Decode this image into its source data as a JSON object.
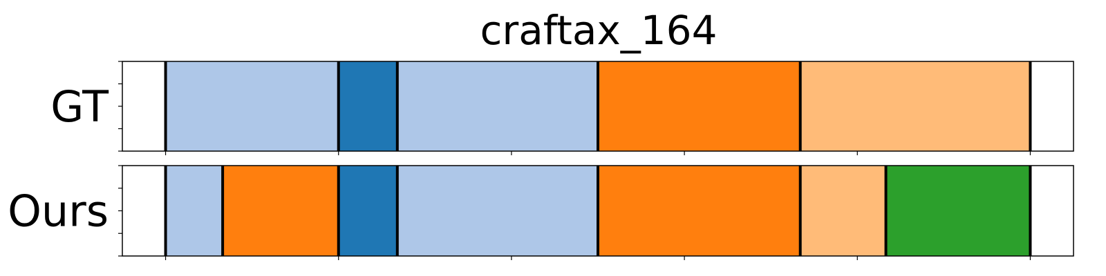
{
  "chart_data": {
    "type": "segmentation-timeline",
    "title": "craftax_164",
    "xlim": [
      0,
      1100
    ],
    "x_ticks": [
      50,
      250,
      450,
      650,
      850,
      1050
    ],
    "y_ticks_per_row": 5,
    "rows": [
      {
        "label": "GT",
        "segments": [
          {
            "start": 50,
            "end": 250,
            "color": "#aec7e8"
          },
          {
            "start": 250,
            "end": 318,
            "color": "#1f77b4"
          },
          {
            "start": 318,
            "end": 550,
            "color": "#aec7e8"
          },
          {
            "start": 550,
            "end": 784,
            "color": "#ff7f0e"
          },
          {
            "start": 784,
            "end": 1050,
            "color": "#ffbb78"
          }
        ]
      },
      {
        "label": "Ours",
        "segments": [
          {
            "start": 50,
            "end": 116,
            "color": "#aec7e8"
          },
          {
            "start": 116,
            "end": 250,
            "color": "#ff7f0e"
          },
          {
            "start": 250,
            "end": 318,
            "color": "#1f77b4"
          },
          {
            "start": 318,
            "end": 550,
            "color": "#aec7e8"
          },
          {
            "start": 550,
            "end": 784,
            "color": "#ff7f0e"
          },
          {
            "start": 784,
            "end": 883,
            "color": "#ffbb78"
          },
          {
            "start": 883,
            "end": 1050,
            "color": "#2ca02c"
          }
        ]
      }
    ]
  }
}
